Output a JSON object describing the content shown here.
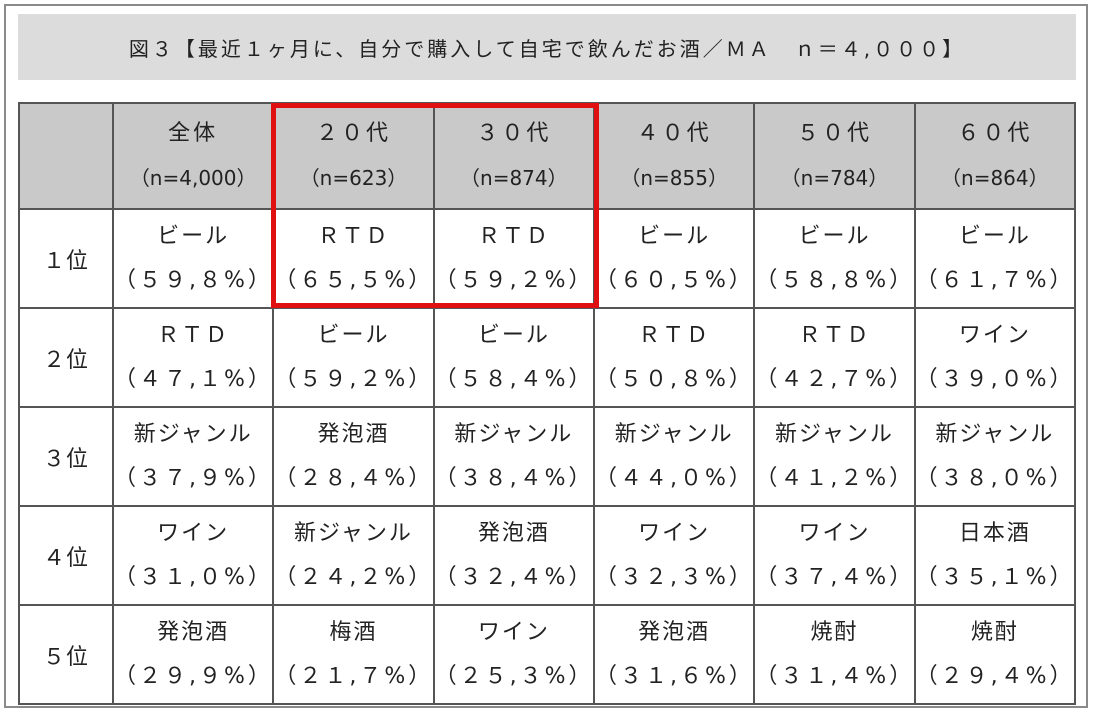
{
  "chart_data": {
    "type": "table",
    "title": "図３【最近１ヶ月に、自分で購入して自宅で飲んだお酒／ＭＡ　ｎ＝４,０００】",
    "columns": [
      {
        "label": "全体",
        "n": "（n=4,000）"
      },
      {
        "label": "２０代",
        "n": "（n=623）"
      },
      {
        "label": "３０代",
        "n": "（n=874）"
      },
      {
        "label": "４０代",
        "n": "（n=855）"
      },
      {
        "label": "５０代",
        "n": "（n=784）"
      },
      {
        "label": "６０代",
        "n": "（n=864）"
      }
    ],
    "rows": [
      {
        "rank": "１位",
        "cells": [
          {
            "item": "ビール",
            "pct": "（５９,８%）"
          },
          {
            "item": "ＲＴＤ",
            "pct": "（６５,５%）"
          },
          {
            "item": "ＲＴＤ",
            "pct": "（５９,２%）"
          },
          {
            "item": "ビール",
            "pct": "（６０,５%）"
          },
          {
            "item": "ビール",
            "pct": "（５８,８%）"
          },
          {
            "item": "ビール",
            "pct": "（６１,７%）"
          }
        ]
      },
      {
        "rank": "２位",
        "cells": [
          {
            "item": "ＲＴＤ",
            "pct": "（４７,１%）"
          },
          {
            "item": "ビール",
            "pct": "（５９,２%）"
          },
          {
            "item": "ビール",
            "pct": "（５８,４%）"
          },
          {
            "item": "ＲＴＤ",
            "pct": "（５０,８%）"
          },
          {
            "item": "ＲＴＤ",
            "pct": "（４２,７%）"
          },
          {
            "item": "ワイン",
            "pct": "（３９,０%）"
          }
        ]
      },
      {
        "rank": "３位",
        "cells": [
          {
            "item": "新ジャンル",
            "pct": "（３７,９%）"
          },
          {
            "item": "発泡酒",
            "pct": "（２８,４%）"
          },
          {
            "item": "新ジャンル",
            "pct": "（３８,４%）"
          },
          {
            "item": "新ジャンル",
            "pct": "（４４,０%）"
          },
          {
            "item": "新ジャンル",
            "pct": "（４１,２%）"
          },
          {
            "item": "新ジャンル",
            "pct": "（３８,０%）"
          }
        ]
      },
      {
        "rank": "４位",
        "cells": [
          {
            "item": "ワイン",
            "pct": "（３１,０%）"
          },
          {
            "item": "新ジャンル",
            "pct": "（２４,２%）"
          },
          {
            "item": "発泡酒",
            "pct": "（３２,４%）"
          },
          {
            "item": "ワイン",
            "pct": "（３２,３%）"
          },
          {
            "item": "ワイン",
            "pct": "（３７,４%）"
          },
          {
            "item": "日本酒",
            "pct": "（３５,１%）"
          }
        ]
      },
      {
        "rank": "５位",
        "cells": [
          {
            "item": "発泡酒",
            "pct": "（２９,９%）"
          },
          {
            "item": "梅酒",
            "pct": "（２１,７%）"
          },
          {
            "item": "ワイン",
            "pct": "（２５,３%）"
          },
          {
            "item": "発泡酒",
            "pct": "（３１,６%）"
          },
          {
            "item": "焼酎",
            "pct": "（３１,４%）"
          },
          {
            "item": "焼酎",
            "pct": "（２９,４%）"
          }
        ]
      }
    ],
    "highlighted_columns": [
      "２０代",
      "３０代"
    ],
    "highlighted_rank": "１位"
  },
  "colors": {
    "header_bg": "#c9c9c9",
    "title_bg": "#dcdcdc",
    "highlight": "#e01010",
    "border": "#555555"
  }
}
